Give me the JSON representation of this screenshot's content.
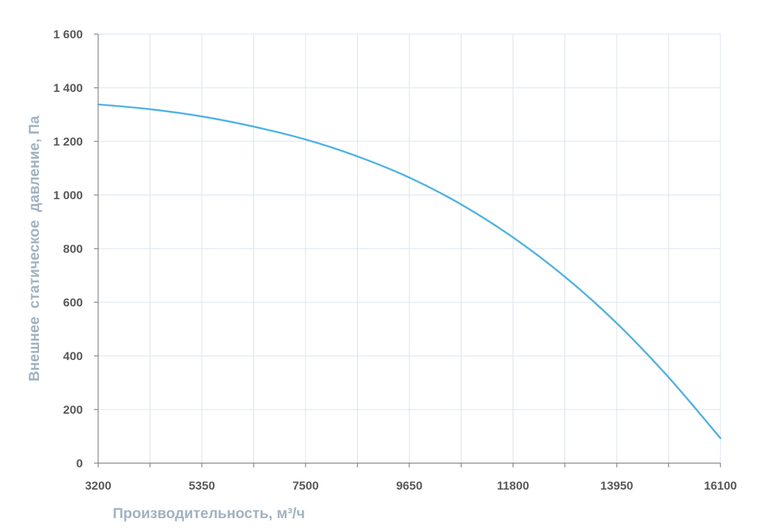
{
  "chart_data": {
    "type": "line",
    "title": "",
    "xlabel": "Производительность, м³/ч",
    "ylabel": "Внешнее  статическое  давление, Па",
    "xlim": [
      3200,
      16100
    ],
    "ylim": [
      0,
      1600
    ],
    "x_ticks": [
      3200,
      5350,
      7500,
      9650,
      11800,
      13950,
      16100
    ],
    "x_tick_labels": [
      "3200",
      "5350",
      "7500",
      "9650",
      "11800",
      "13950",
      "16100"
    ],
    "x_minor_ticks": [
      4275,
      6425,
      8575,
      10725,
      12875,
      15025
    ],
    "y_ticks": [
      0,
      200,
      400,
      600,
      800,
      1000,
      1200,
      1400,
      1600
    ],
    "y_tick_labels": [
      "0",
      "200",
      "400",
      "600",
      "800",
      "1 000",
      "1 200",
      "1 400",
      "1 600"
    ],
    "grid": true,
    "legend": false,
    "series": [
      {
        "color": "#4bb3e6",
        "x": [
          3200,
          4275,
          5350,
          6425,
          7500,
          8575,
          9650,
          10725,
          11800,
          12875,
          13950,
          15025,
          16100
        ],
        "y": [
          1338,
          1320,
          1293,
          1255,
          1207,
          1144,
          1065,
          965,
          842,
          695,
          522,
          320,
          93
        ]
      }
    ]
  }
}
